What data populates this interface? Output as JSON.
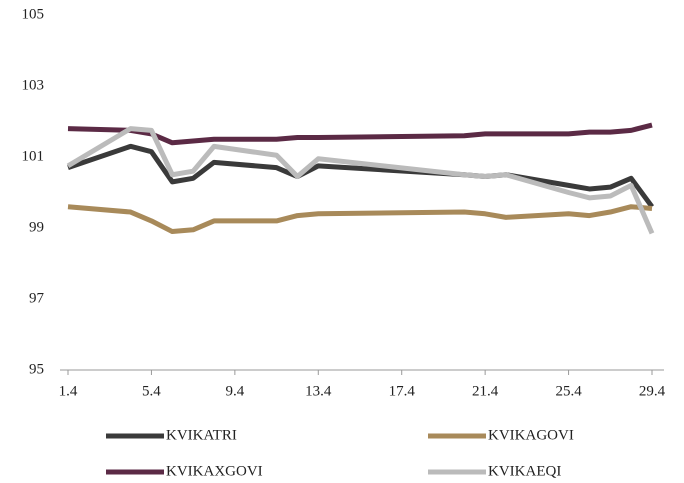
{
  "chart_data": {
    "type": "line",
    "x": [
      1,
      4,
      5,
      6,
      7,
      8,
      11,
      12,
      13,
      20,
      21,
      22,
      25,
      26,
      27,
      28,
      29
    ],
    "xlim": [
      1,
      29
    ],
    "xticks": [
      {
        "value": 1,
        "label": "1.4"
      },
      {
        "value": 5,
        "label": "5.4"
      },
      {
        "value": 9,
        "label": "9.4"
      },
      {
        "value": 13,
        "label": "13.4"
      },
      {
        "value": 17,
        "label": "17.4"
      },
      {
        "value": 21,
        "label": "21.4"
      },
      {
        "value": 25,
        "label": "25.4"
      },
      {
        "value": 29,
        "label": "29.4"
      }
    ],
    "ylim": [
      95,
      105
    ],
    "yticks": [
      95,
      97,
      99,
      101,
      103,
      105
    ],
    "grid": false,
    "legend": "bottom",
    "series": [
      {
        "name": "KVIKATRI",
        "color": "#3a3a3a",
        "values": [
          100.7,
          101.3,
          101.15,
          100.3,
          100.4,
          100.85,
          100.7,
          100.45,
          100.75,
          100.5,
          100.45,
          100.5,
          100.2,
          100.1,
          100.15,
          100.4,
          99.6
        ]
      },
      {
        "name": "KVIKAGOVI",
        "color": "#a88a5a",
        "values": [
          99.6,
          99.45,
          99.2,
          98.9,
          98.95,
          99.2,
          99.2,
          99.35,
          99.4,
          99.45,
          99.4,
          99.3,
          99.4,
          99.35,
          99.45,
          99.6,
          99.55
        ]
      },
      {
        "name": "KVIKAXGOVI",
        "color": "#5b2a45",
        "values": [
          101.8,
          101.75,
          101.65,
          101.4,
          101.45,
          101.5,
          101.5,
          101.55,
          101.55,
          101.6,
          101.65,
          101.65,
          101.65,
          101.7,
          101.7,
          101.75,
          101.9
        ]
      },
      {
        "name": "KVIKAEQI",
        "color": "#bbbbbb",
        "values": [
          100.75,
          101.8,
          101.75,
          100.5,
          100.6,
          101.3,
          101.05,
          100.45,
          100.95,
          100.5,
          100.45,
          100.5,
          100.0,
          99.85,
          99.9,
          100.2,
          98.85
        ]
      }
    ]
  }
}
